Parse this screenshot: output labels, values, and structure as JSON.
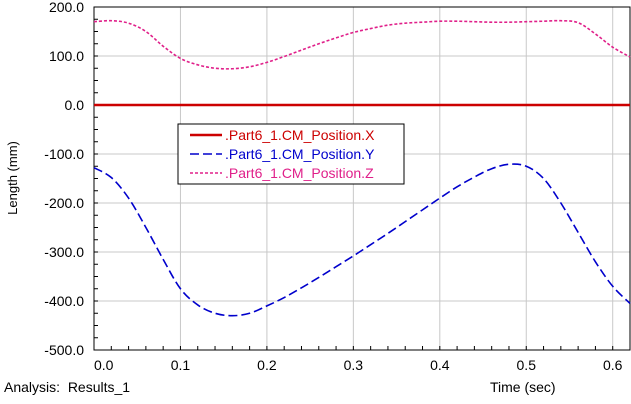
{
  "chart_data": {
    "type": "line",
    "ylabel": "Length (mm)",
    "xlabel": "Time (sec)",
    "xlim": [
      0.0,
      0.62
    ],
    "ylim": [
      -500.0,
      200.0
    ],
    "x_ticks": [
      "0.0",
      "0.1",
      "0.2",
      "0.3",
      "0.4",
      "0.5",
      "0.6"
    ],
    "y_ticks": [
      "200.0",
      "100.0",
      "0.0",
      "-100.0",
      "-200.0",
      "-300.0",
      "-400.0",
      "-500.0"
    ],
    "grid": true,
    "legend_position": "upper-left-inside",
    "series": [
      {
        "name": ".Part6_1.CM_Position.X",
        "color": "#cc0000",
        "style": "solid",
        "x": [
          0.0,
          0.62
        ],
        "y": [
          0.0,
          0.0
        ]
      },
      {
        "name": ".Part6_1.CM_Position.Y",
        "color": "#0000cc",
        "style": "dashed",
        "x": [
          0.0,
          0.02,
          0.04,
          0.06,
          0.08,
          0.1,
          0.12,
          0.14,
          0.16,
          0.18,
          0.2,
          0.22,
          0.24,
          0.26,
          0.28,
          0.3,
          0.32,
          0.34,
          0.36,
          0.38,
          0.4,
          0.42,
          0.44,
          0.46,
          0.48,
          0.5,
          0.52,
          0.54,
          0.56,
          0.58,
          0.6,
          0.62
        ],
        "y": [
          -128,
          -148,
          -190,
          -250,
          -315,
          -375,
          -408,
          -425,
          -430,
          -425,
          -410,
          -393,
          -373,
          -352,
          -330,
          -308,
          -285,
          -262,
          -238,
          -214,
          -190,
          -167,
          -147,
          -130,
          -121,
          -125,
          -150,
          -200,
          -260,
          -320,
          -370,
          -405
        ]
      },
      {
        "name": ".Part6_1.CM_Position.Z",
        "color": "#e0208a",
        "style": "dotted",
        "x": [
          0.0,
          0.02,
          0.04,
          0.06,
          0.08,
          0.1,
          0.12,
          0.14,
          0.16,
          0.18,
          0.2,
          0.22,
          0.24,
          0.26,
          0.28,
          0.3,
          0.32,
          0.34,
          0.36,
          0.38,
          0.4,
          0.42,
          0.44,
          0.46,
          0.48,
          0.5,
          0.52,
          0.54,
          0.56,
          0.58,
          0.6,
          0.62
        ],
        "y": [
          170,
          172,
          167,
          150,
          120,
          95,
          82,
          75,
          74,
          78,
          87,
          99,
          112,
          125,
          137,
          148,
          156,
          163,
          167,
          169,
          171,
          171,
          170,
          169,
          169,
          170,
          171,
          172,
          168,
          145,
          118,
          98
        ]
      }
    ]
  },
  "footer": {
    "analysis_label": "Analysis:",
    "analysis_name": "Results_1"
  }
}
